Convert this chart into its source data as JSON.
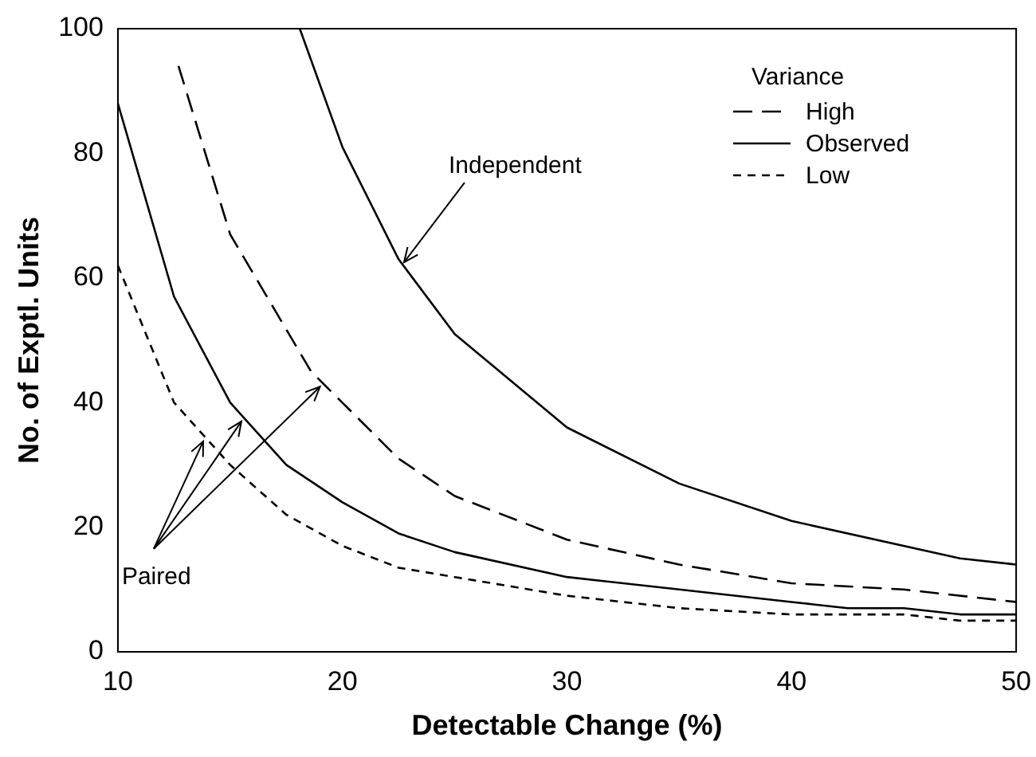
{
  "chart_data": {
    "type": "line",
    "xlabel": "Detectable Change (%)",
    "ylabel": "No. of Exptl. Units",
    "legend_title": "Variance",
    "xlim": [
      10,
      50
    ],
    "ylim": [
      0,
      100
    ],
    "xticks": [
      10,
      20,
      30,
      40,
      50
    ],
    "yticks": [
      0,
      20,
      40,
      60,
      80,
      100
    ],
    "grid": false,
    "legend": "top right",
    "marker": "none",
    "series": [
      {
        "name": "High",
        "color": "#000000",
        "line_style": "dashed",
        "x": [
          12.7,
          15,
          18.6,
          22.5,
          25,
          30,
          35,
          40,
          45,
          50
        ],
        "values": [
          94,
          67,
          45,
          31,
          25,
          18,
          14,
          11,
          10,
          8
        ]
      },
      {
        "name": "Observed",
        "color": "#000000",
        "line_style": "solid",
        "x": [
          10,
          12.5,
          15,
          17.5,
          20,
          22.5,
          25,
          30,
          35,
          40,
          42.5,
          45,
          47.5,
          50
        ],
        "values": [
          88,
          57,
          40,
          30,
          24,
          19,
          16,
          12,
          10,
          8,
          7,
          7,
          6,
          6
        ]
      },
      {
        "name": "Low",
        "color": "#000000",
        "line_style": "dotted",
        "x": [
          10,
          12.5,
          15,
          17.5,
          20,
          22.5,
          25,
          30,
          35,
          40,
          45,
          47.5,
          50
        ],
        "values": [
          62,
          40,
          30,
          22,
          17,
          13.5,
          12,
          9,
          7,
          6,
          6,
          5,
          5
        ]
      },
      {
        "color": "#000000",
        "line_style": "solid",
        "x": [
          18.1,
          20,
          22.5,
          25,
          30,
          35,
          40,
          47.5,
          50
        ],
        "values": [
          100,
          81,
          63,
          51,
          36,
          27,
          21,
          15,
          14
        ]
      }
    ],
    "annotations": [
      {
        "text": "Independent",
        "x": 22.6,
        "y": 62
      },
      {
        "text": "Paired",
        "x": 15.5,
        "y": 37
      }
    ]
  }
}
